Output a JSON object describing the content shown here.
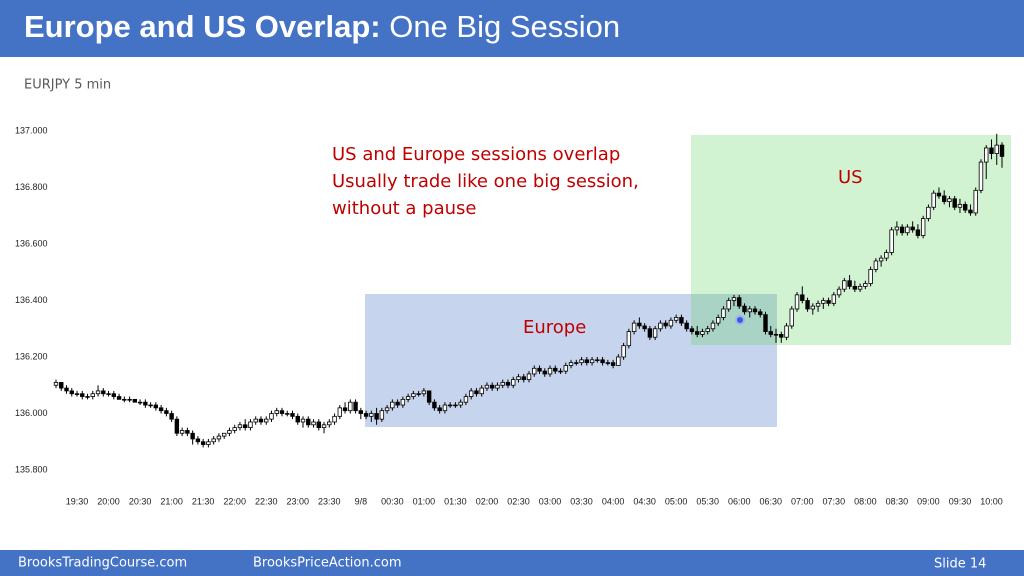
{
  "slide": {
    "title_bold": "Europe and US Overlap:",
    "title_rest": "One Big Session",
    "subtitle": "EURJPY 5 min",
    "footer_left": "BrooksTradingCourse.com",
    "footer_mid": "BrooksPriceAction.com",
    "footer_right": "Slide  14"
  },
  "chart_data": {
    "type": "candlestick",
    "annotation": [
      "US and Europe sessions overlap",
      "Usually trade like one big session,",
      "without a pause"
    ],
    "europe_label": "Europe",
    "us_label": "US",
    "ylim": [
      135.8,
      137.0
    ],
    "yticks": [
      {
        "value": 135.8,
        "label": "135.800"
      },
      {
        "value": 136.0,
        "label": "136.000"
      },
      {
        "value": 136.2,
        "label": "136.200"
      },
      {
        "value": 136.4,
        "label": "136.400"
      },
      {
        "value": 136.6,
        "label": "136.600"
      },
      {
        "value": 136.8,
        "label": "136.800"
      },
      {
        "value": 137.0,
        "label": "137.000"
      }
    ],
    "up_color": "#ffffff",
    "down_color": "#000000",
    "categories": [
      null,
      null,
      null,
      null,
      "19:30",
      null,
      null,
      null,
      null,
      null,
      "20:00",
      null,
      null,
      null,
      null,
      null,
      "20:30",
      null,
      null,
      null,
      null,
      null,
      "21:00",
      null,
      null,
      null,
      null,
      null,
      "21:30",
      null,
      null,
      null,
      null,
      null,
      "22:00",
      null,
      null,
      null,
      null,
      null,
      "22:30",
      null,
      null,
      null,
      null,
      null,
      "23:00",
      null,
      null,
      null,
      null,
      null,
      "23:30",
      null,
      null,
      null,
      null,
      null,
      "9/8",
      null,
      null,
      null,
      null,
      null,
      "00:30",
      null,
      null,
      null,
      null,
      null,
      "01:00",
      null,
      null,
      null,
      null,
      null,
      "01:30",
      null,
      null,
      null,
      null,
      null,
      "02:00",
      null,
      null,
      null,
      null,
      null,
      "02:30",
      null,
      null,
      null,
      null,
      null,
      "03:00",
      null,
      null,
      null,
      null,
      null,
      "03:30",
      null,
      null,
      null,
      null,
      null,
      "04:00",
      null,
      null,
      null,
      null,
      null,
      "04:30",
      null,
      null,
      null,
      null,
      null,
      "05:00",
      null,
      null,
      null,
      null,
      null,
      "05:30",
      null,
      null,
      null,
      null,
      null,
      "06:00",
      null,
      null,
      null,
      null,
      null,
      "06:30",
      null,
      null,
      null,
      null,
      null,
      "07:00",
      null,
      null,
      null,
      null,
      null,
      "07:30",
      null,
      null,
      null,
      null,
      null,
      "08:00",
      null,
      null,
      null,
      null,
      null,
      "08:30",
      null,
      null,
      null,
      null,
      null,
      "09:00",
      null,
      null,
      null,
      null,
      null,
      "09:30",
      null,
      null,
      null,
      null,
      null,
      "10:00",
      null,
      null
    ],
    "ohlc": [
      [
        136.1,
        136.12,
        136.09,
        136.11
      ],
      [
        136.11,
        136.11,
        136.08,
        136.09
      ],
      [
        136.09,
        136.1,
        136.07,
        136.08
      ],
      [
        136.08,
        136.09,
        136.06,
        136.07
      ],
      [
        136.07,
        136.08,
        136.06,
        136.07
      ],
      [
        136.07,
        136.08,
        136.05,
        136.06
      ],
      [
        136.06,
        136.07,
        136.05,
        136.06
      ],
      [
        136.06,
        136.08,
        136.05,
        136.07
      ],
      [
        136.07,
        136.1,
        136.06,
        136.08
      ],
      [
        136.08,
        136.09,
        136.06,
        136.07
      ],
      [
        136.07,
        136.08,
        136.06,
        136.07
      ],
      [
        136.07,
        136.08,
        136.05,
        136.06
      ],
      [
        136.06,
        136.07,
        136.05,
        136.05
      ],
      [
        136.05,
        136.06,
        136.04,
        136.05
      ],
      [
        136.05,
        136.06,
        136.04,
        136.05
      ],
      [
        136.05,
        136.05,
        136.04,
        136.04
      ],
      [
        136.04,
        136.05,
        136.03,
        136.04
      ],
      [
        136.04,
        136.05,
        136.02,
        136.03
      ],
      [
        136.03,
        136.04,
        136.02,
        136.03
      ],
      [
        136.03,
        136.04,
        136.01,
        136.02
      ],
      [
        136.02,
        136.03,
        136.0,
        136.01
      ],
      [
        136.01,
        136.02,
        135.99,
        136.0
      ],
      [
        136.0,
        136.01,
        135.97,
        135.98
      ],
      [
        135.98,
        135.99,
        135.92,
        135.93
      ],
      [
        135.93,
        135.95,
        135.92,
        135.94
      ],
      [
        135.94,
        135.95,
        135.92,
        135.93
      ],
      [
        135.93,
        135.94,
        135.89,
        135.91
      ],
      [
        135.91,
        135.92,
        135.89,
        135.9
      ],
      [
        135.9,
        135.91,
        135.88,
        135.89
      ],
      [
        135.89,
        135.91,
        135.88,
        135.9
      ],
      [
        135.9,
        135.92,
        135.89,
        135.91
      ],
      [
        135.91,
        135.93,
        135.9,
        135.92
      ],
      [
        135.92,
        135.93,
        135.91,
        135.93
      ],
      [
        135.93,
        135.95,
        135.92,
        135.94
      ],
      [
        135.94,
        135.96,
        135.93,
        135.95
      ],
      [
        135.95,
        135.97,
        135.94,
        135.96
      ],
      [
        135.96,
        135.98,
        135.94,
        135.95
      ],
      [
        135.95,
        135.98,
        135.94,
        135.97
      ],
      [
        135.97,
        135.99,
        135.96,
        135.98
      ],
      [
        135.98,
        135.99,
        135.96,
        135.97
      ],
      [
        135.97,
        135.99,
        135.96,
        135.98
      ],
      [
        135.98,
        136.01,
        135.97,
        136.0
      ],
      [
        136.0,
        136.02,
        135.99,
        136.01
      ],
      [
        136.01,
        136.02,
        135.99,
        136.0
      ],
      [
        136.0,
        136.01,
        135.99,
        136.0
      ],
      [
        136.0,
        136.01,
        135.98,
        135.99
      ],
      [
        135.99,
        136.0,
        135.96,
        135.97
      ],
      [
        135.97,
        135.99,
        135.95,
        135.98
      ],
      [
        135.98,
        135.99,
        135.95,
        135.96
      ],
      [
        135.96,
        135.98,
        135.95,
        135.97
      ],
      [
        135.97,
        135.98,
        135.94,
        135.95
      ],
      [
        135.95,
        135.97,
        135.93,
        135.96
      ],
      [
        135.96,
        135.98,
        135.95,
        135.97
      ],
      [
        135.97,
        136.0,
        135.96,
        135.99
      ],
      [
        135.99,
        136.03,
        135.98,
        136.02
      ],
      [
        136.02,
        136.04,
        136.0,
        136.01
      ],
      [
        136.01,
        136.05,
        136.0,
        136.04
      ],
      [
        136.04,
        136.05,
        136.0,
        136.01
      ],
      [
        136.01,
        136.02,
        135.98,
        136.0
      ],
      [
        136.0,
        136.01,
        135.98,
        135.99
      ],
      [
        135.99,
        136.01,
        135.97,
        136.0
      ],
      [
        136.0,
        136.02,
        135.96,
        135.98
      ],
      [
        135.98,
        136.02,
        135.97,
        136.01
      ],
      [
        136.01,
        136.03,
        136.0,
        136.02
      ],
      [
        136.02,
        136.05,
        136.01,
        136.04
      ],
      [
        136.04,
        136.05,
        136.02,
        136.03
      ],
      [
        136.03,
        136.06,
        136.02,
        136.05
      ],
      [
        136.05,
        136.07,
        136.04,
        136.06
      ],
      [
        136.06,
        136.08,
        136.05,
        136.07
      ],
      [
        136.07,
        136.08,
        136.06,
        136.07
      ],
      [
        136.07,
        136.09,
        136.06,
        136.08
      ],
      [
        136.08,
        136.08,
        136.03,
        136.04
      ],
      [
        136.04,
        136.05,
        136.01,
        136.02
      ],
      [
        136.02,
        136.03,
        136.0,
        136.01
      ],
      [
        136.01,
        136.04,
        136.0,
        136.03
      ],
      [
        136.03,
        136.04,
        136.02,
        136.03
      ],
      [
        136.03,
        136.04,
        136.02,
        136.03
      ],
      [
        136.03,
        136.05,
        136.02,
        136.04
      ],
      [
        136.04,
        136.07,
        136.03,
        136.06
      ],
      [
        136.06,
        136.09,
        136.05,
        136.08
      ],
      [
        136.08,
        136.09,
        136.06,
        136.07
      ],
      [
        136.07,
        136.1,
        136.06,
        136.09
      ],
      [
        136.09,
        136.11,
        136.08,
        136.1
      ],
      [
        136.1,
        136.11,
        136.08,
        136.09
      ],
      [
        136.09,
        136.11,
        136.08,
        136.1
      ],
      [
        136.1,
        136.12,
        136.09,
        136.11
      ],
      [
        136.11,
        136.12,
        136.09,
        136.1
      ],
      [
        136.1,
        136.13,
        136.09,
        136.12
      ],
      [
        136.12,
        136.14,
        136.11,
        136.13
      ],
      [
        136.13,
        136.14,
        136.11,
        136.12
      ],
      [
        136.12,
        136.15,
        136.11,
        136.14
      ],
      [
        136.14,
        136.17,
        136.13,
        136.16
      ],
      [
        136.16,
        136.17,
        136.14,
        136.15
      ],
      [
        136.15,
        136.16,
        136.13,
        136.14
      ],
      [
        136.14,
        136.17,
        136.13,
        136.16
      ],
      [
        136.16,
        136.17,
        136.14,
        136.15
      ],
      [
        136.15,
        136.16,
        136.14,
        136.15
      ],
      [
        136.15,
        136.18,
        136.14,
        136.17
      ],
      [
        136.17,
        136.19,
        136.16,
        136.18
      ],
      [
        136.18,
        136.19,
        136.17,
        136.18
      ],
      [
        136.18,
        136.2,
        136.17,
        136.19
      ],
      [
        136.19,
        136.2,
        136.17,
        136.18
      ],
      [
        136.18,
        136.2,
        136.17,
        136.19
      ],
      [
        136.19,
        136.2,
        136.18,
        136.19
      ],
      [
        136.19,
        136.2,
        136.17,
        136.18
      ],
      [
        136.18,
        136.19,
        136.17,
        136.18
      ],
      [
        136.18,
        136.19,
        136.16,
        136.17
      ],
      [
        136.17,
        136.21,
        136.17,
        136.2
      ],
      [
        136.2,
        136.25,
        136.19,
        136.24
      ],
      [
        136.24,
        136.3,
        136.23,
        136.29
      ],
      [
        136.29,
        136.33,
        136.28,
        136.32
      ],
      [
        136.32,
        136.34,
        136.3,
        136.31
      ],
      [
        136.31,
        136.32,
        136.29,
        136.3
      ],
      [
        136.3,
        136.31,
        136.26,
        136.27
      ],
      [
        136.27,
        136.31,
        136.26,
        136.3
      ],
      [
        136.3,
        136.33,
        136.29,
        136.32
      ],
      [
        136.32,
        136.33,
        136.3,
        136.31
      ],
      [
        136.31,
        136.34,
        136.3,
        136.33
      ],
      [
        136.33,
        136.35,
        136.32,
        136.34
      ],
      [
        136.34,
        136.35,
        136.31,
        136.32
      ],
      [
        136.32,
        136.33,
        136.29,
        136.3
      ],
      [
        136.3,
        136.31,
        136.28,
        136.29
      ],
      [
        136.29,
        136.31,
        136.27,
        136.28
      ],
      [
        136.28,
        136.3,
        136.27,
        136.29
      ],
      [
        136.29,
        136.31,
        136.28,
        136.3
      ],
      [
        136.3,
        136.33,
        136.29,
        136.32
      ],
      [
        136.32,
        136.35,
        136.31,
        136.34
      ],
      [
        136.34,
        136.38,
        136.33,
        136.37
      ],
      [
        136.37,
        136.41,
        136.36,
        136.4
      ],
      [
        136.4,
        136.42,
        136.38,
        136.41
      ],
      [
        136.41,
        136.42,
        136.37,
        136.38
      ],
      [
        136.38,
        136.39,
        136.35,
        136.36
      ],
      [
        136.36,
        136.38,
        136.34,
        136.37
      ],
      [
        136.37,
        136.38,
        136.35,
        136.36
      ],
      [
        136.36,
        136.37,
        136.34,
        136.35
      ],
      [
        136.35,
        136.36,
        136.28,
        136.29
      ],
      [
        136.29,
        136.31,
        136.27,
        136.28
      ],
      [
        136.28,
        136.3,
        136.25,
        136.28
      ],
      [
        136.28,
        136.29,
        136.25,
        136.27
      ],
      [
        136.27,
        136.32,
        136.26,
        136.31
      ],
      [
        136.31,
        136.38,
        136.3,
        136.37
      ],
      [
        136.37,
        136.43,
        136.36,
        136.42
      ],
      [
        136.42,
        136.45,
        136.39,
        136.4
      ],
      [
        136.4,
        136.41,
        136.36,
        136.37
      ],
      [
        136.37,
        136.39,
        136.35,
        136.38
      ],
      [
        136.38,
        136.4,
        136.36,
        136.39
      ],
      [
        136.39,
        136.41,
        136.37,
        136.4
      ],
      [
        136.4,
        136.41,
        136.38,
        136.39
      ],
      [
        136.39,
        136.43,
        136.38,
        136.42
      ],
      [
        136.42,
        136.45,
        136.41,
        136.44
      ],
      [
        136.44,
        136.48,
        136.43,
        136.47
      ],
      [
        136.47,
        136.49,
        136.44,
        136.45
      ],
      [
        136.45,
        136.47,
        136.43,
        136.44
      ],
      [
        136.44,
        136.46,
        136.43,
        136.45
      ],
      [
        136.45,
        136.47,
        136.44,
        136.46
      ],
      [
        136.46,
        136.52,
        136.45,
        136.51
      ],
      [
        136.51,
        136.55,
        136.5,
        136.54
      ],
      [
        136.54,
        136.56,
        136.52,
        136.55
      ],
      [
        136.55,
        136.58,
        136.54,
        136.57
      ],
      [
        136.57,
        136.66,
        136.56,
        136.65
      ],
      [
        136.65,
        136.68,
        136.63,
        136.66
      ],
      [
        136.66,
        136.67,
        136.63,
        136.64
      ],
      [
        136.64,
        136.67,
        136.63,
        136.66
      ],
      [
        136.66,
        136.68,
        136.64,
        136.65
      ],
      [
        136.65,
        136.67,
        136.62,
        136.63
      ],
      [
        136.63,
        136.7,
        136.62,
        136.69
      ],
      [
        136.69,
        136.74,
        136.68,
        136.73
      ],
      [
        136.73,
        136.79,
        136.72,
        136.78
      ],
      [
        136.78,
        136.8,
        136.76,
        136.77
      ],
      [
        136.77,
        136.79,
        136.74,
        136.75
      ],
      [
        136.75,
        136.77,
        136.73,
        136.76
      ],
      [
        136.76,
        136.77,
        136.72,
        136.73
      ],
      [
        136.73,
        136.76,
        136.71,
        136.74
      ],
      [
        136.74,
        136.75,
        136.71,
        136.72
      ],
      [
        136.72,
        136.74,
        136.7,
        136.71
      ],
      [
        136.71,
        136.8,
        136.7,
        136.79
      ],
      [
        136.79,
        136.9,
        136.78,
        136.89
      ],
      [
        136.89,
        136.95,
        136.83,
        136.94
      ],
      [
        136.94,
        136.97,
        136.9,
        136.92
      ],
      [
        136.92,
        136.99,
        136.88,
        136.95
      ],
      [
        136.95,
        136.96,
        136.87,
        136.91
      ]
    ]
  }
}
